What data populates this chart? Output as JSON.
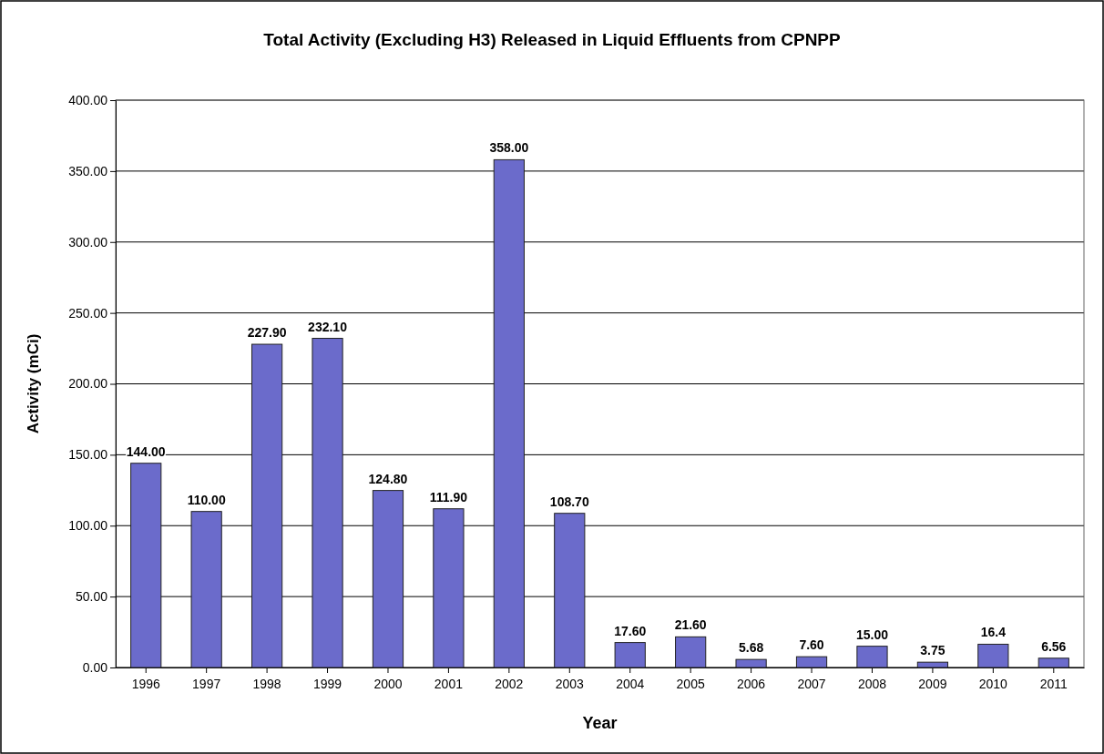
{
  "chart_data": {
    "type": "bar",
    "title": "Total Activity (Excluding H3) Released in Liquid Effluents from CPNPP",
    "xlabel": "Year",
    "ylabel": "Activity (mCi)",
    "categories": [
      "1996",
      "1997",
      "1998",
      "1999",
      "2000",
      "2001",
      "2002",
      "2003",
      "2004",
      "2005",
      "2006",
      "2007",
      "2008",
      "2009",
      "2010",
      "2011"
    ],
    "values": [
      144,
      110,
      227.9,
      232.1,
      124.8,
      111.9,
      358,
      108.7,
      17.6,
      21.6,
      5.68,
      7.6,
      15,
      3.75,
      16.4,
      6.56
    ],
    "value_labels": [
      "144.00",
      "110.00",
      "227.90",
      "232.10",
      "124.80",
      "111.90",
      "358.00",
      "108.70",
      "17.60",
      "21.60",
      "5.68",
      "7.60",
      "15.00",
      "3.75",
      "16.4",
      "6.56"
    ],
    "color": "#6b6bcb",
    "ylim": [
      0,
      400
    ],
    "yticks": [
      {
        "value": 0,
        "label": "0.00"
      },
      {
        "value": 50,
        "label": "50.00"
      },
      {
        "value": 100,
        "label": "100.00"
      },
      {
        "value": 150,
        "label": "150.00"
      },
      {
        "value": 200,
        "label": "200.00"
      },
      {
        "value": 250,
        "label": "250.00"
      },
      {
        "value": 300,
        "label": "300.00"
      },
      {
        "value": 350,
        "label": "350.00"
      },
      {
        "value": 400,
        "label": "400.00"
      }
    ],
    "grid": "y"
  }
}
